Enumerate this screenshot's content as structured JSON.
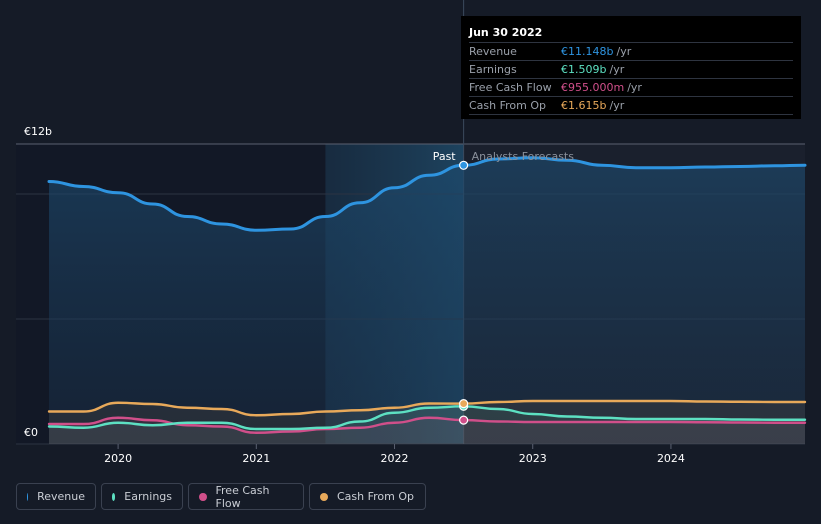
{
  "colors": {
    "revenue": "#2e94e0",
    "earnings": "#5de0c2",
    "free_cash_flow": "#d04f8a",
    "cash_from_op": "#e8a95a"
  },
  "tooltip": {
    "date": "Jun 30 2022",
    "rows": [
      {
        "label": "Revenue",
        "value": "€11.148b",
        "unit": "/yr",
        "key": "revenue"
      },
      {
        "label": "Earnings",
        "value": "€1.509b",
        "unit": "/yr",
        "key": "earnings"
      },
      {
        "label": "Free Cash Flow",
        "value": "€955.000m",
        "unit": "/yr",
        "key": "free_cash_flow"
      },
      {
        "label": "Cash From Op",
        "value": "€1.615b",
        "unit": "/yr",
        "key": "cash_from_op"
      }
    ]
  },
  "legend": [
    {
      "label": "Revenue",
      "key": "revenue"
    },
    {
      "label": "Earnings",
      "key": "earnings"
    },
    {
      "label": "Free Cash Flow",
      "key": "free_cash_flow"
    },
    {
      "label": "Cash From Op",
      "key": "cash_from_op"
    }
  ],
  "chart_data": {
    "type": "line",
    "title": "",
    "ylabel_top": "€12b",
    "ylabel_bottom": "€0",
    "ylim": [
      0,
      12
    ],
    "xlim": [
      2019.5,
      2024.97
    ],
    "x_ticks": [
      2020,
      2021,
      2022,
      2023,
      2024
    ],
    "x_tick_labels": [
      "2020",
      "2021",
      "2022",
      "2023",
      "2024"
    ],
    "divider_x": 2022.5,
    "highlight_start_x": 2021.5,
    "past_label": "Past",
    "forecast_label": "Analysts Forecasts",
    "series": [
      {
        "name": "Revenue",
        "key": "revenue",
        "points": [
          [
            2019.5,
            10.5
          ],
          [
            2019.75,
            10.3
          ],
          [
            2020.0,
            10.05
          ],
          [
            2020.25,
            9.6
          ],
          [
            2020.5,
            9.1
          ],
          [
            2020.75,
            8.8
          ],
          [
            2021.0,
            8.55
          ],
          [
            2021.25,
            8.6
          ],
          [
            2021.5,
            9.1
          ],
          [
            2021.75,
            9.65
          ],
          [
            2022.0,
            10.25
          ],
          [
            2022.25,
            10.75
          ],
          [
            2022.5,
            11.148
          ],
          [
            2022.75,
            11.4
          ],
          [
            2023.0,
            11.45
          ],
          [
            2023.25,
            11.35
          ],
          [
            2023.5,
            11.15
          ],
          [
            2023.75,
            11.05
          ],
          [
            2024.0,
            11.05
          ],
          [
            2024.25,
            11.08
          ],
          [
            2024.5,
            11.1
          ],
          [
            2024.75,
            11.13
          ],
          [
            2024.97,
            11.15
          ]
        ]
      },
      {
        "name": "Earnings",
        "key": "earnings",
        "points": [
          [
            2019.5,
            0.7
          ],
          [
            2019.75,
            0.65
          ],
          [
            2020.0,
            0.85
          ],
          [
            2020.25,
            0.75
          ],
          [
            2020.5,
            0.85
          ],
          [
            2020.75,
            0.85
          ],
          [
            2021.0,
            0.6
          ],
          [
            2021.25,
            0.6
          ],
          [
            2021.5,
            0.65
          ],
          [
            2021.75,
            0.9
          ],
          [
            2022.0,
            1.25
          ],
          [
            2022.25,
            1.45
          ],
          [
            2022.5,
            1.509
          ],
          [
            2022.75,
            1.4
          ],
          [
            2023.0,
            1.2
          ],
          [
            2023.25,
            1.1
          ],
          [
            2023.5,
            1.05
          ],
          [
            2023.75,
            1.0
          ],
          [
            2024.0,
            1.0
          ],
          [
            2024.25,
            1.0
          ],
          [
            2024.5,
            0.98
          ],
          [
            2024.75,
            0.97
          ],
          [
            2024.97,
            0.97
          ]
        ]
      },
      {
        "name": "Free Cash Flow",
        "key": "free_cash_flow",
        "points": [
          [
            2019.5,
            0.8
          ],
          [
            2019.75,
            0.8
          ],
          [
            2020.0,
            1.05
          ],
          [
            2020.25,
            0.95
          ],
          [
            2020.5,
            0.75
          ],
          [
            2020.75,
            0.7
          ],
          [
            2021.0,
            0.45
          ],
          [
            2021.25,
            0.5
          ],
          [
            2021.5,
            0.6
          ],
          [
            2021.75,
            0.65
          ],
          [
            2022.0,
            0.85
          ],
          [
            2022.25,
            1.05
          ],
          [
            2022.5,
            0.955
          ],
          [
            2022.75,
            0.9
          ],
          [
            2023.0,
            0.88
          ],
          [
            2023.25,
            0.88
          ],
          [
            2023.5,
            0.88
          ],
          [
            2023.75,
            0.88
          ],
          [
            2024.0,
            0.88
          ],
          [
            2024.25,
            0.87
          ],
          [
            2024.5,
            0.86
          ],
          [
            2024.75,
            0.85
          ],
          [
            2024.97,
            0.85
          ]
        ]
      },
      {
        "name": "Cash From Op",
        "key": "cash_from_op",
        "points": [
          [
            2019.5,
            1.3
          ],
          [
            2019.75,
            1.3
          ],
          [
            2020.0,
            1.65
          ],
          [
            2020.25,
            1.6
          ],
          [
            2020.5,
            1.45
          ],
          [
            2020.75,
            1.4
          ],
          [
            2021.0,
            1.15
          ],
          [
            2021.25,
            1.2
          ],
          [
            2021.5,
            1.3
          ],
          [
            2021.75,
            1.35
          ],
          [
            2022.0,
            1.45
          ],
          [
            2022.25,
            1.62
          ],
          [
            2022.5,
            1.615
          ],
          [
            2022.75,
            1.68
          ],
          [
            2023.0,
            1.72
          ],
          [
            2023.25,
            1.72
          ],
          [
            2023.5,
            1.72
          ],
          [
            2023.75,
            1.72
          ],
          [
            2024.0,
            1.72
          ],
          [
            2024.25,
            1.7
          ],
          [
            2024.5,
            1.69
          ],
          [
            2024.75,
            1.68
          ],
          [
            2024.97,
            1.68
          ]
        ]
      }
    ]
  }
}
